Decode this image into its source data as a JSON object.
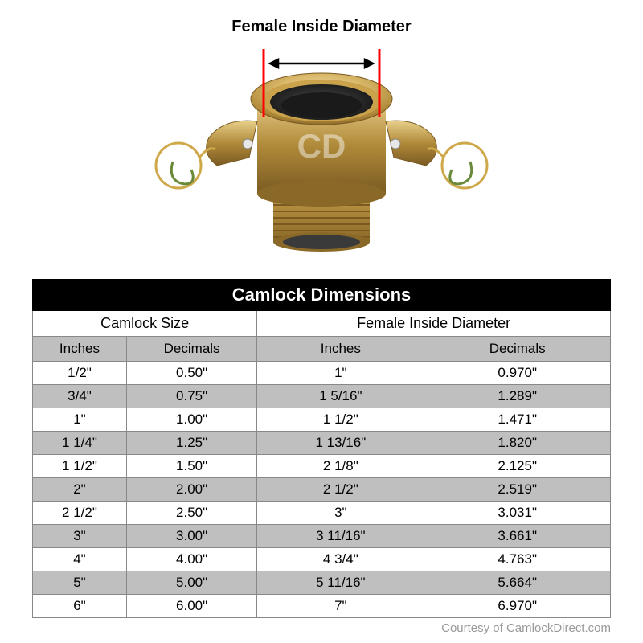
{
  "diagram": {
    "title": "Female Inside Diameter",
    "watermark": "CD",
    "arrow_color": "#000000",
    "marker_line_color": "#ff0000",
    "brass_light": "#d9b86a",
    "brass_mid": "#b08a3a",
    "brass_dark": "#7a5a22",
    "brass_highlight": "#f0dca8",
    "inner_dark": "#2a2a2a",
    "chain_color": "#cfa84a",
    "chain_green": "#6a8a3a"
  },
  "table": {
    "title": "Camlock Dimensions",
    "group_headers": [
      "Camlock Size",
      "Female Inside Diameter"
    ],
    "sub_headers": [
      "Inches",
      "Decimals",
      "Inches",
      "Decimals"
    ],
    "rows": [
      [
        "1/2\"",
        "0.50\"",
        "1\"",
        "0.970\""
      ],
      [
        "3/4\"",
        "0.75\"",
        "1 5/16\"",
        "1.289\""
      ],
      [
        "1\"",
        "1.00\"",
        "1 1/2\"",
        "1.471\""
      ],
      [
        "1 1/4\"",
        "1.25\"",
        "1 13/16\"",
        "1.820\""
      ],
      [
        "1 1/2\"",
        "1.50\"",
        "2 1/8\"",
        "2.125\""
      ],
      [
        "2\"",
        "2.00\"",
        "2 1/2\"",
        "2.519\""
      ],
      [
        "2 1/2\"",
        "2.50\"",
        "3\"",
        "3.031\""
      ],
      [
        "3\"",
        "3.00\"",
        "3 11/16\"",
        "3.661\""
      ],
      [
        "4\"",
        "4.00\"",
        "4 3/4\"",
        "4.763\""
      ],
      [
        "5\"",
        "5.00\"",
        "5 11/16\"",
        "5.664\""
      ],
      [
        "6\"",
        "6.00\"",
        "7\"",
        "6.970\""
      ]
    ],
    "row_light_bg": "#ffffff",
    "row_dark_bg": "#bfbfbf",
    "header_bg": "#000000",
    "header_fg": "#ffffff",
    "border_color": "#888888"
  },
  "courtesy": "Courtesy of CamlockDirect.com"
}
